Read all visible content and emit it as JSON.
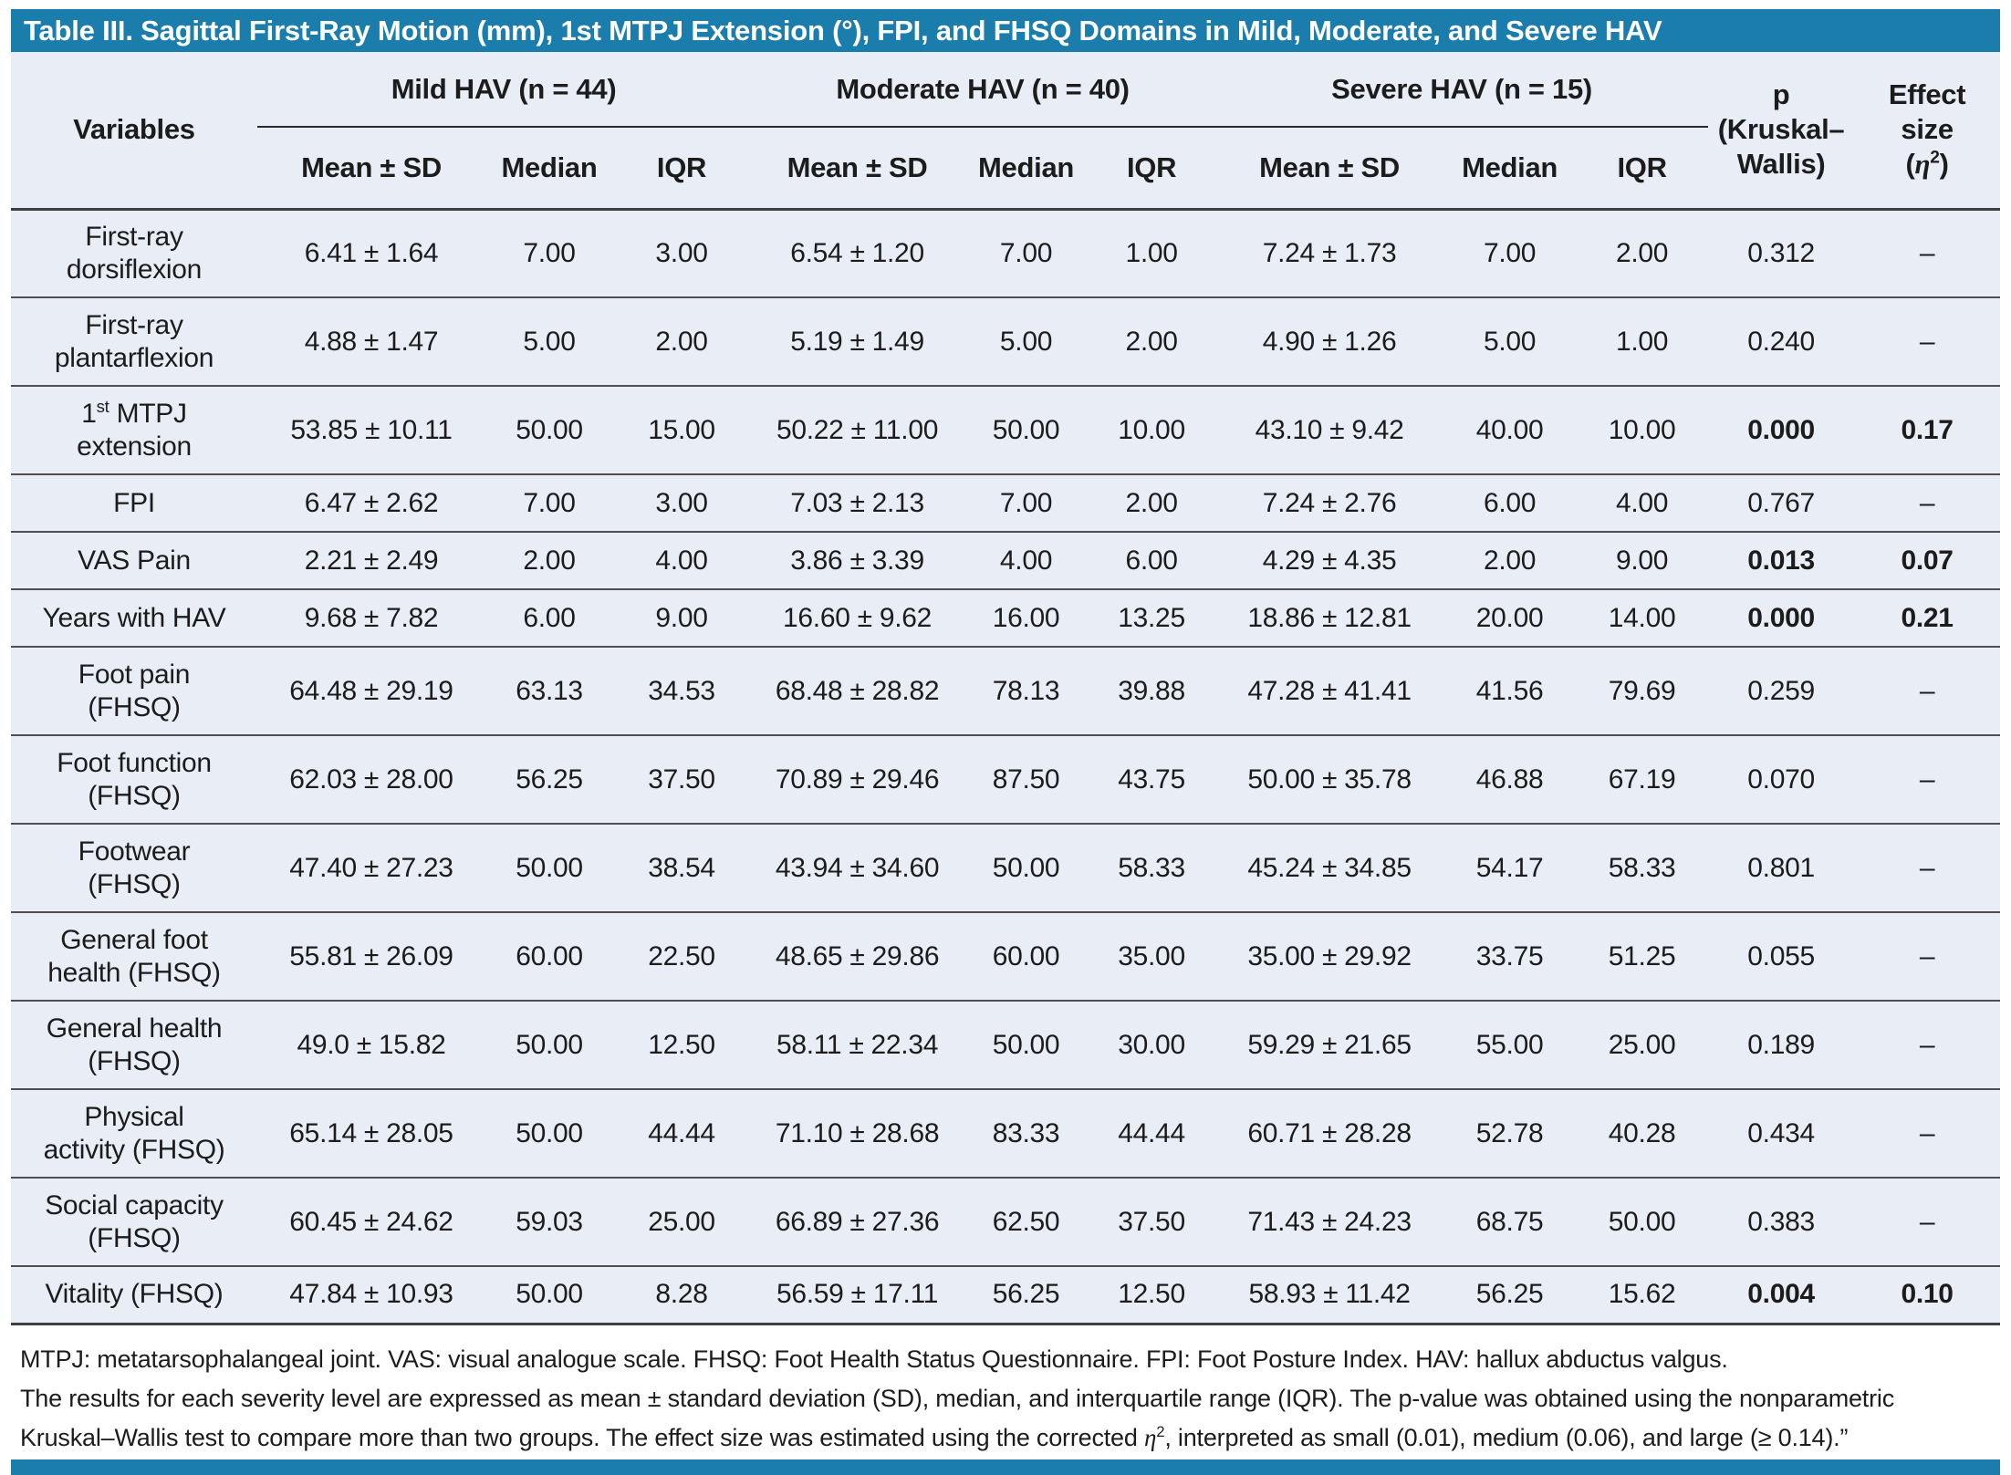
{
  "title": "Table III. Sagittal First-Ray Motion (mm), 1st MTPJ Extension (°), FPI, and FHSQ Domains in Mild, Moderate, and Severe HAV",
  "header": {
    "variables_label": "Variables",
    "groups": [
      {
        "label": "Mild HAV (n = 44)"
      },
      {
        "label": "Moderate HAV (n = 40)"
      },
      {
        "label": "Severe HAV (n = 15)"
      }
    ],
    "subheaders": [
      "Mean ± SD",
      "Median",
      "IQR"
    ],
    "p": {
      "line1": "p",
      "line2": "(Kruskal–",
      "line3": "Wallis)"
    },
    "effect": {
      "line1": "Effect",
      "line2": "size",
      "open": "(",
      "eta": "η",
      "sup": "2",
      "close": ")"
    }
  },
  "rows": [
    {
      "variable": [
        [
          "First-ray"
        ],
        [
          "dorsiflexion"
        ]
      ],
      "tall": true,
      "cells": [
        "6.41 ± 1.64",
        "7.00",
        "3.00",
        "6.54 ± 1.20",
        "7.00",
        "1.00",
        "7.24 ± 1.73",
        "7.00",
        "2.00"
      ],
      "p": "0.312",
      "p_bold": false,
      "effect": "–",
      "effect_bold": false
    },
    {
      "variable": [
        [
          "First-ray"
        ],
        [
          "plantarflexion"
        ]
      ],
      "tall": true,
      "cells": [
        "4.88 ± 1.47",
        "5.00",
        "2.00",
        "5.19 ± 1.49",
        "5.00",
        "2.00",
        "4.90 ± 1.26",
        "5.00",
        "1.00"
      ],
      "p": "0.240",
      "p_bold": false,
      "effect": "–",
      "effect_bold": false
    },
    {
      "variable": [
        [
          "1",
          {
            "sup": "st"
          },
          " MTPJ"
        ],
        [
          "extension"
        ]
      ],
      "tall": true,
      "cells": [
        "53.85 ± 10.11",
        "50.00",
        "15.00",
        "50.22 ± 11.00",
        "50.00",
        "10.00",
        "43.10 ± 9.42",
        "40.00",
        "10.00"
      ],
      "p": "0.000",
      "p_bold": true,
      "effect": "0.17",
      "effect_bold": true
    },
    {
      "variable": [
        [
          "FPI"
        ]
      ],
      "tall": false,
      "cells": [
        "6.47 ± 2.62",
        "7.00",
        "3.00",
        "7.03 ± 2.13",
        "7.00",
        "2.00",
        "7.24 ± 2.76",
        "6.00",
        "4.00"
      ],
      "p": "0.767",
      "p_bold": false,
      "effect": "–",
      "effect_bold": false
    },
    {
      "variable": [
        [
          "VAS Pain"
        ]
      ],
      "tall": false,
      "cells": [
        "2.21 ± 2.49",
        "2.00",
        "4.00",
        "3.86 ± 3.39",
        "4.00",
        "6.00",
        "4.29 ± 4.35",
        "2.00",
        "9.00"
      ],
      "p": "0.013",
      "p_bold": true,
      "effect": "0.07",
      "effect_bold": true
    },
    {
      "variable": [
        [
          "Years with HAV"
        ]
      ],
      "tall": false,
      "cells": [
        "9.68 ± 7.82",
        "6.00",
        "9.00",
        "16.60 ± 9.62",
        "16.00",
        "13.25",
        "18.86 ± 12.81",
        "20.00",
        "14.00"
      ],
      "p": "0.000",
      "p_bold": true,
      "effect": "0.21",
      "effect_bold": true
    },
    {
      "variable": [
        [
          "Foot pain"
        ],
        [
          "(FHSQ)"
        ]
      ],
      "tall": true,
      "cells": [
        "64.48 ± 29.19",
        "63.13",
        "34.53",
        "68.48 ± 28.82",
        "78.13",
        "39.88",
        "47.28 ± 41.41",
        "41.56",
        "79.69"
      ],
      "p": "0.259",
      "p_bold": false,
      "effect": "–",
      "effect_bold": false
    },
    {
      "variable": [
        [
          "Foot function"
        ],
        [
          "(FHSQ)"
        ]
      ],
      "tall": true,
      "cells": [
        "62.03 ± 28.00",
        "56.25",
        "37.50",
        "70.89 ± 29.46",
        "87.50",
        "43.75",
        "50.00 ± 35.78",
        "46.88",
        "67.19"
      ],
      "p": "0.070",
      "p_bold": false,
      "effect": "–",
      "effect_bold": false
    },
    {
      "variable": [
        [
          "Footwear"
        ],
        [
          "(FHSQ)"
        ]
      ],
      "tall": true,
      "cells": [
        "47.40 ± 27.23",
        "50.00",
        "38.54",
        "43.94 ± 34.60",
        "50.00",
        "58.33",
        "45.24 ± 34.85",
        "54.17",
        "58.33"
      ],
      "p": "0.801",
      "p_bold": false,
      "effect": "–",
      "effect_bold": false
    },
    {
      "variable": [
        [
          "General foot"
        ],
        [
          "health (FHSQ)"
        ]
      ],
      "tall": true,
      "cells": [
        "55.81 ± 26.09",
        "60.00",
        "22.50",
        "48.65 ± 29.86",
        "60.00",
        "35.00",
        "35.00 ± 29.92",
        "33.75",
        "51.25"
      ],
      "p": "0.055",
      "p_bold": false,
      "effect": "–",
      "effect_bold": false
    },
    {
      "variable": [
        [
          "General health"
        ],
        [
          "(FHSQ)"
        ]
      ],
      "tall": true,
      "cells": [
        "49.0 ± 15.82",
        "50.00",
        "12.50",
        "58.11 ± 22.34",
        "50.00",
        "30.00",
        "59.29 ± 21.65",
        "55.00",
        "25.00"
      ],
      "p": "0.189",
      "p_bold": false,
      "effect": "–",
      "effect_bold": false
    },
    {
      "variable": [
        [
          "Physical"
        ],
        [
          "activity (FHSQ)"
        ]
      ],
      "tall": true,
      "cells": [
        "65.14 ± 28.05",
        "50.00",
        "44.44",
        "71.10 ± 28.68",
        "83.33",
        "44.44",
        "60.71 ± 28.28",
        "52.78",
        "40.28"
      ],
      "p": "0.434",
      "p_bold": false,
      "effect": "–",
      "effect_bold": false
    },
    {
      "variable": [
        [
          "Social capacity"
        ],
        [
          "(FHSQ)"
        ]
      ],
      "tall": true,
      "cells": [
        "60.45 ± 24.62",
        "59.03",
        "25.00",
        "66.89 ± 27.36",
        "62.50",
        "37.50",
        "71.43 ± 24.23",
        "68.75",
        "50.00"
      ],
      "p": "0.383",
      "p_bold": false,
      "effect": "–",
      "effect_bold": false
    },
    {
      "variable": [
        [
          "Vitality (FHSQ)"
        ]
      ],
      "tall": false,
      "cells": [
        "47.84 ± 10.93",
        "50.00",
        "8.28",
        "56.59 ± 17.11",
        "56.25",
        "12.50",
        "58.93 ± 11.42",
        "56.25",
        "15.62"
      ],
      "p": "0.004",
      "p_bold": true,
      "effect": "0.10",
      "effect_bold": true
    }
  ],
  "footnotes": {
    "line1": "MTPJ: metatarsophalangeal joint. VAS: visual analogue scale. FHSQ: Foot Health Status Questionnaire. FPI: Foot Posture Index. HAV: hallux abductus valgus.",
    "line2": "The results for each severity level are expressed as mean ± standard deviation (SD), median, and interquartile range (IQR). The p-value was obtained using the nonparametric",
    "line3": {
      "pre": "Kruskal–Wallis test to compare more than two groups. The effect size was estimated using the corrected ",
      "eta": "η",
      "sup": "2",
      "post": ", interpreted as small (0.01), medium (0.06), and large (≥ 0.14).”"
    }
  },
  "colors": {
    "title_bar_bg": "#1b7dab",
    "title_text": "#ffffff",
    "table_bg": "#e9eef6",
    "text": "#1c1c1c",
    "row_divider": "#4f4f4f"
  }
}
